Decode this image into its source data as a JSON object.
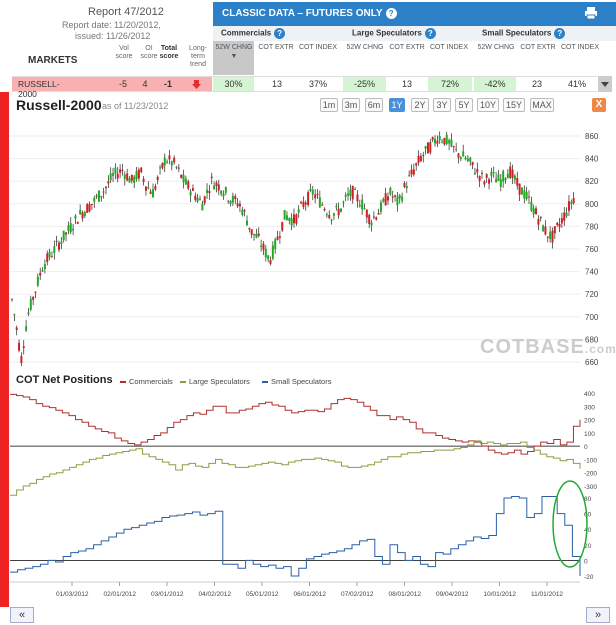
{
  "report": {
    "title": "Report 47/2012",
    "date": "Report date: 11/20/2012,",
    "issued": "issued: 11/26/2012"
  },
  "header": {
    "markets_label": "MARKETS",
    "vol_score": "Vol score",
    "oi_score": "OI score",
    "total_score": "Total score",
    "long_term": "Long-term trend",
    "classic_title": "CLASSIC DATA – FUTURES ONLY",
    "groups": [
      "Commercials",
      "Large Speculators",
      "Small Speculators"
    ],
    "cols": [
      "52W CHNG",
      "COT EXTR",
      "COT INDEX"
    ],
    "sort_arrow": "▼"
  },
  "row": {
    "market": "RUSSELL-2000",
    "vol": "-5",
    "oi": "4",
    "total": "-1",
    "trend_icon": "down-arrow",
    "comm": [
      "30%",
      "13",
      "37%"
    ],
    "large": [
      "-25%",
      "13",
      "72%"
    ],
    "small": [
      "-42%",
      "23",
      "41%"
    ]
  },
  "chart": {
    "title": "Russell-2000",
    "asof": "as of 11/23/2012",
    "ranges": [
      "1m",
      "3m",
      "6m",
      "1Y",
      "2Y",
      "3Y",
      "5Y",
      "10Y",
      "15Y",
      "MAX"
    ],
    "active_range": "1Y",
    "close": "X",
    "watermark": "COTBASE",
    "watermark_suffix": ".com",
    "price_ticks": [
      860,
      840,
      820,
      800,
      780,
      760,
      740,
      720,
      700,
      680,
      660
    ],
    "cot_title": "COT Net Positions",
    "legend": [
      {
        "name": "Commercials",
        "color": "#b03030"
      },
      {
        "name": "Large Speculators",
        "color": "#8aa040"
      },
      {
        "name": "Small Speculators",
        "color": "#2a5fa8"
      }
    ],
    "cot_ticks_top": [
      400,
      300,
      200,
      100,
      0,
      -100,
      -200,
      -300
    ],
    "cot_ticks_bottom": [
      80,
      60,
      40,
      20,
      0,
      -20
    ],
    "x_labels": [
      "01/03/2012",
      "02/01/2012",
      "03/01/2012",
      "04/02/2012",
      "05/01/2012",
      "06/01/2012",
      "07/02/2012",
      "08/01/2012",
      "09/04/2012",
      "10/01/2012",
      "11/01/2012"
    ]
  },
  "nav": {
    "prev": "«",
    "next": "»"
  },
  "colors": {
    "accent": "#2c80c8",
    "red": "#ee2222",
    "green_hl": "#d4f4d4"
  }
}
